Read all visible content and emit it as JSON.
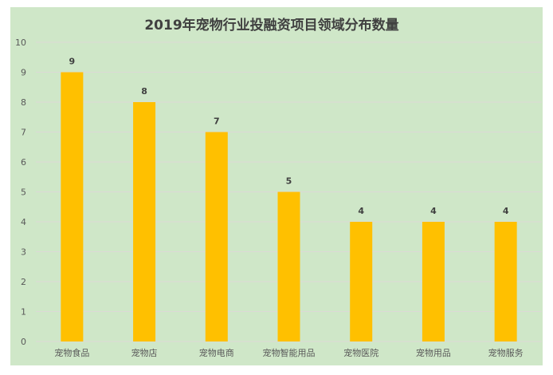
{
  "chart_data": {
    "type": "bar",
    "title": "2019年宠物行业投融资项目领域分布数量",
    "xlabel": "",
    "ylabel": "",
    "categories": [
      "宠物食品",
      "宠物店",
      "宠物电商",
      "宠物智能用品",
      "宠物医院",
      "宠物用品",
      "宠物服务"
    ],
    "values": [
      9,
      8,
      7,
      5,
      4,
      4,
      4
    ],
    "data_labels": [
      "9",
      "8",
      "7",
      "5",
      "4",
      "4",
      "4"
    ],
    "ylim": [
      0,
      10
    ],
    "yticks": [
      "0",
      "1",
      "2",
      "3",
      "4",
      "5",
      "6",
      "7",
      "8",
      "9",
      "10"
    ],
    "grid": true,
    "legend": "none",
    "colors": {
      "background": "#cfe7c8",
      "bar": "#ffc000",
      "grid": "#dcd9d6"
    }
  }
}
